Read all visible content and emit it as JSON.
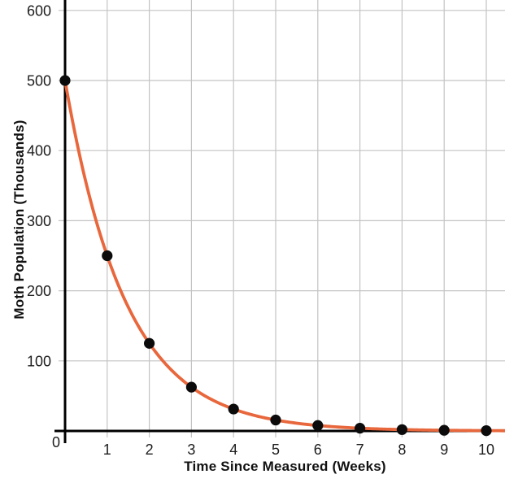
{
  "chart_data": {
    "type": "line",
    "title": "",
    "xlabel": "Time Since Measured (Weeks)",
    "ylabel": "Moth Population (Thousands)",
    "x": [
      0,
      1,
      2,
      3,
      4,
      5,
      6,
      7,
      8,
      9,
      10
    ],
    "values": [
      500,
      250,
      125,
      62.5,
      31.25,
      15.625,
      7.8125,
      3.90625,
      1.953125,
      0.9765625,
      0.48828125
    ],
    "x_tick_labels": [
      "1",
      "2",
      "3",
      "4",
      "5",
      "6",
      "7",
      "8",
      "9",
      "10"
    ],
    "x_ticks": [
      1,
      2,
      3,
      4,
      5,
      6,
      7,
      8,
      9,
      10
    ],
    "y_tick_labels": [
      "100",
      "200",
      "300",
      "400",
      "500",
      "600"
    ],
    "y_ticks": [
      100,
      200,
      300,
      400,
      500,
      600
    ],
    "origin_label": "0",
    "xlim": [
      0,
      10.44
    ],
    "ylim": [
      0,
      615
    ],
    "grid": true,
    "legend": false,
    "marker": "filled-circle",
    "colors": {
      "curve": "#e8673c",
      "points": "#0b0b0b",
      "grid": "#c3c3c3",
      "axis": "#000000",
      "tick_text": "#1d1d1d",
      "title_text": "#111111",
      "background": "#ffffff"
    }
  }
}
